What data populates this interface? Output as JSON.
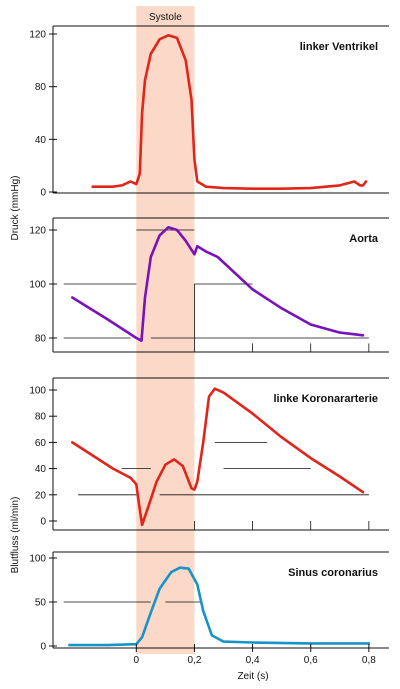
{
  "chart_data": {
    "type": "line",
    "band": {
      "label": "Systole",
      "x": [
        0,
        0.2
      ],
      "color": "#fbd8c8"
    },
    "x_axis": {
      "label": "Zeit (s)",
      "ticks": [
        0,
        0.2,
        0.4,
        0.6,
        0.8
      ],
      "tick_labels": [
        "0",
        "0,2",
        "0,4",
        "0,6",
        "0,8"
      ],
      "range": [
        -0.25,
        0.88
      ]
    },
    "group_labels": {
      "pressure": "Druck (mmHg)",
      "flow": "Blutfluss  (ml/min)"
    },
    "panels": [
      {
        "title": "linker Ventrikel",
        "color": "#e0251b",
        "ylim": [
          0,
          125
        ],
        "yticks": [
          0,
          40,
          80,
          120
        ],
        "ytick_labels": [
          "0",
          "40",
          "80",
          "120"
        ],
        "grid": [],
        "x": [
          -0.15,
          -0.08,
          -0.05,
          -0.02,
          0.0,
          0.012,
          0.02,
          0.03,
          0.05,
          0.08,
          0.11,
          0.14,
          0.17,
          0.19,
          0.2,
          0.21,
          0.24,
          0.3,
          0.4,
          0.5,
          0.6,
          0.7,
          0.75,
          0.77,
          0.78,
          0.79
        ],
        "y": [
          4,
          4,
          5,
          8,
          6,
          14,
          60,
          85,
          105,
          116,
          119,
          117,
          100,
          70,
          25,
          8,
          4,
          3,
          2.5,
          2.5,
          3,
          5,
          8,
          5,
          5,
          8
        ]
      },
      {
        "title": "Aorta",
        "color": "#7a12b8",
        "ylim": [
          76,
          126
        ],
        "yticks": [
          80,
          100,
          120
        ],
        "ytick_labels": [
          "80",
          "100",
          "120"
        ],
        "grid": [
          [
            0.0,
            0.2,
            120
          ],
          [
            -0.25,
            0.0,
            100
          ],
          [
            0.2,
            0.4,
            100
          ],
          [
            -0.25,
            -0.02,
            80
          ],
          [
            0.05,
            0.8,
            80
          ],
          [
            0.2,
            0.2,
            100
          ],
          [
            0.4,
            0.4,
            78
          ],
          [
            0.6,
            0.6,
            78
          ],
          [
            0.8,
            0.8,
            78
          ]
        ],
        "x": [
          -0.22,
          -0.1,
          0.0,
          0.018,
          0.03,
          0.05,
          0.08,
          0.11,
          0.14,
          0.17,
          0.2,
          0.21,
          0.24,
          0.28,
          0.33,
          0.4,
          0.5,
          0.6,
          0.7,
          0.78
        ],
        "y": [
          95,
          87,
          80,
          79,
          95,
          110,
          118,
          121,
          120,
          116,
          111,
          114,
          112,
          110,
          105,
          98,
          91,
          85,
          82,
          81
        ]
      },
      {
        "title": "linke Koronararterie",
        "color": "#e0251b",
        "ylim": [
          -5,
          105
        ],
        "yticks": [
          0,
          20,
          40,
          60,
          80,
          100
        ],
        "ytick_labels": [
          "0",
          "20",
          "40",
          "60",
          "80",
          "100"
        ],
        "grid": [
          [
            -0.2,
            0.0,
            20
          ],
          [
            0.08,
            0.8,
            20
          ],
          [
            -0.05,
            0.05,
            40
          ],
          [
            0.3,
            0.6,
            40
          ],
          [
            0.27,
            0.45,
            60
          ],
          [
            0.2,
            0.2,
            0
          ],
          [
            0.4,
            0.4,
            0
          ],
          [
            0.6,
            0.6,
            0
          ],
          [
            0.8,
            0.8,
            0
          ]
        ],
        "x": [
          -0.22,
          -0.15,
          -0.08,
          -0.02,
          0.0,
          0.01,
          0.02,
          0.04,
          0.07,
          0.1,
          0.13,
          0.16,
          0.19,
          0.2,
          0.21,
          0.23,
          0.25,
          0.27,
          0.3,
          0.4,
          0.5,
          0.6,
          0.7,
          0.78
        ],
        "y": [
          60,
          50,
          40,
          33,
          28,
          12,
          -3,
          10,
          30,
          43,
          47,
          42,
          25,
          24,
          30,
          60,
          95,
          101,
          98,
          82,
          64,
          48,
          34,
          22
        ]
      },
      {
        "title": "Sinus coronarius",
        "color": "#1793c8",
        "ylim": [
          0,
          103
        ],
        "yticks": [
          0,
          50,
          100
        ],
        "ytick_labels": [
          "0",
          "50",
          "100"
        ],
        "grid": [
          [
            -0.25,
            0.05,
            50
          ],
          [
            0.1,
            0.22,
            50
          ],
          [
            0.4,
            0.4,
            0
          ],
          [
            0.6,
            0.6,
            0
          ],
          [
            0.8,
            0.8,
            0
          ]
        ],
        "x": [
          -0.23,
          -0.1,
          0.0,
          0.02,
          0.05,
          0.08,
          0.12,
          0.15,
          0.18,
          0.21,
          0.23,
          0.26,
          0.3,
          0.4,
          0.6,
          0.8
        ],
        "y": [
          1,
          1,
          2,
          10,
          38,
          65,
          84,
          89,
          88,
          70,
          40,
          12,
          5,
          4,
          3,
          3
        ]
      }
    ]
  }
}
